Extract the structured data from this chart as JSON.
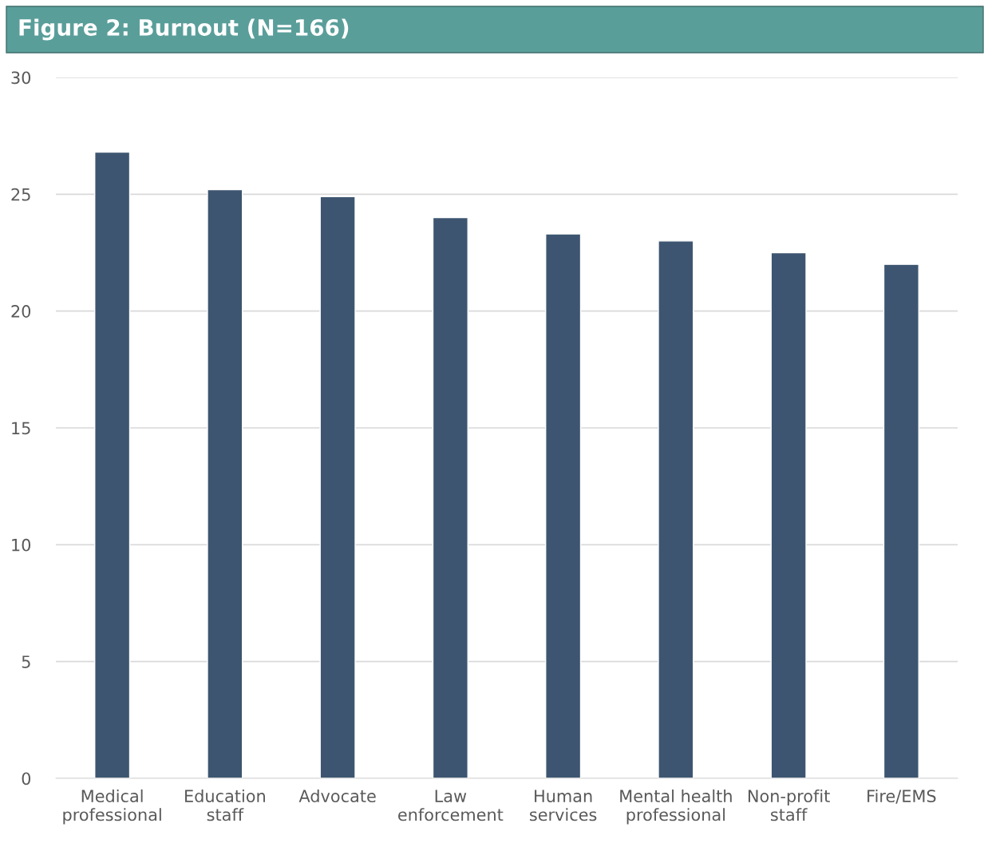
{
  "chart_data": {
    "type": "bar",
    "title": "Figure 2: Burnout (N=166)",
    "categories": [
      "Medical\nprofessional",
      "Education\nstaff",
      "Advocate",
      "Law\nenforcement",
      "Human\nservices",
      "Mental health\nprofessional",
      "Non-profit\nstaff",
      "Fire/EMS"
    ],
    "values": [
      26.8,
      25.2,
      24.9,
      24.0,
      23.3,
      23.0,
      22.5,
      22.0
    ],
    "color": "#3d5570",
    "ylim": [
      0,
      30
    ],
    "yticks": [
      0,
      5,
      10,
      15,
      20,
      25,
      30
    ],
    "grid": "y",
    "legend": false
  }
}
